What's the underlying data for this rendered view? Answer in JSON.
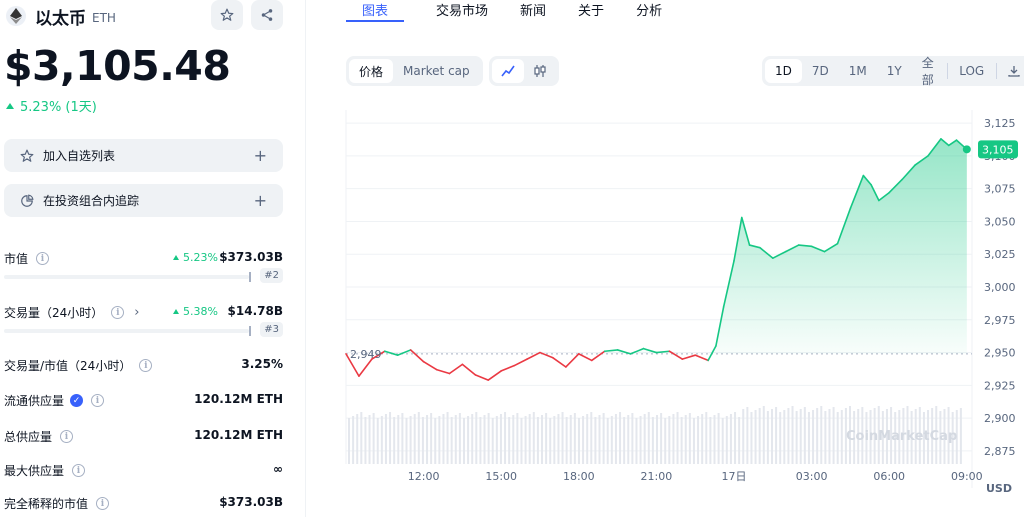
{
  "coin": {
    "name": "以太币",
    "symbol": "ETH"
  },
  "price": "$3,105.48",
  "change": "5.23% (1天)",
  "actions": {
    "watchlist": "加入自选列表",
    "portfolio": "在投资组合内追踪",
    "plus": "+"
  },
  "stats": {
    "market_cap": {
      "label": "市值",
      "pct": "5.23%",
      "value": "$373.03B",
      "rank": "#2"
    },
    "volume": {
      "label": "交易量（24小时）",
      "pct": "5.38%",
      "value": "$14.78B",
      "rank": "#3"
    },
    "vol_mcap": {
      "label": "交易量/市值（24小时）",
      "value": "3.25%"
    },
    "circulating": {
      "label": "流通供应量",
      "value": "120.12M ETH"
    },
    "total": {
      "label": "总供应量",
      "value": "120.12M ETH"
    },
    "max": {
      "label": "最大供应量",
      "value": "∞"
    },
    "fdv": {
      "label": "完全稀释的市值",
      "value": "$373.03B"
    }
  },
  "tabs": [
    "图表",
    "交易市场",
    "新闻",
    "关于",
    "分析"
  ],
  "chart_toggle": {
    "price": "价格",
    "market_cap": "Market cap"
  },
  "ranges": [
    "1D",
    "7D",
    "1M",
    "1Y",
    "全部",
    "LOG"
  ],
  "icons": {
    "logo": "ethereum-icon",
    "star": "star-icon",
    "share": "share-icon",
    "line": "line-chart-icon",
    "candle": "candlestick-icon",
    "download": "download-icon",
    "info": "info-icon",
    "verified": "verified-icon"
  },
  "colors": {
    "up": "#16c784",
    "down": "#ea3943",
    "accent": "#3861fb"
  },
  "chart_data": {
    "type": "line",
    "x_tick_labels": [
      "12:00",
      "15:00",
      "18:00",
      "21:00",
      "17日",
      "03:00",
      "06:00",
      "09:00"
    ],
    "y_ticks": [
      2875,
      2900,
      2925,
      2950,
      2975,
      3000,
      3025,
      3050,
      3075,
      3100,
      3125
    ],
    "y_tick_labels": [
      "2,875",
      "2,900",
      "2,925",
      "2,950",
      "2,975",
      "3,000",
      "3,025",
      "3,050",
      "3,075",
      "3,100",
      "3,125"
    ],
    "ylim": [
      2865,
      3135
    ],
    "xlim": [
      9.0,
      33.2
    ],
    "baseline": 2949,
    "baseline_label": "2,949",
    "current_label": "3,105",
    "currency": "USD",
    "watermark": "CoinMarketCap",
    "x": [
      9.0,
      9.5,
      10.0,
      10.5,
      11.0,
      11.5,
      12.0,
      12.5,
      13.0,
      13.5,
      14.0,
      14.5,
      15.0,
      15.5,
      16.0,
      16.5,
      17.0,
      17.5,
      18.0,
      18.5,
      19.0,
      19.5,
      20.0,
      20.5,
      21.0,
      21.5,
      22.0,
      22.5,
      23.0,
      23.3,
      23.6,
      24.0,
      24.3,
      24.6,
      25.0,
      25.5,
      26.0,
      26.5,
      27.0,
      27.5,
      28.0,
      28.5,
      29.0,
      29.3,
      29.6,
      30.0,
      30.5,
      31.0,
      31.5,
      32.0,
      32.3,
      32.6,
      33.0
    ],
    "y": [
      2949,
      2932,
      2945,
      2951,
      2948,
      2952,
      2943,
      2937,
      2934,
      2941,
      2933,
      2929,
      2936,
      2940,
      2945,
      2950,
      2946,
      2939,
      2949,
      2944,
      2951,
      2952,
      2949,
      2953,
      2950,
      2951,
      2945,
      2948,
      2944,
      2955,
      2985,
      3020,
      3053,
      3032,
      3030,
      3022,
      3027,
      3032,
      3031,
      3027,
      3033,
      3060,
      3085,
      3078,
      3066,
      3072,
      3082,
      3093,
      3100,
      3113,
      3108,
      3112,
      3105
    ]
  }
}
